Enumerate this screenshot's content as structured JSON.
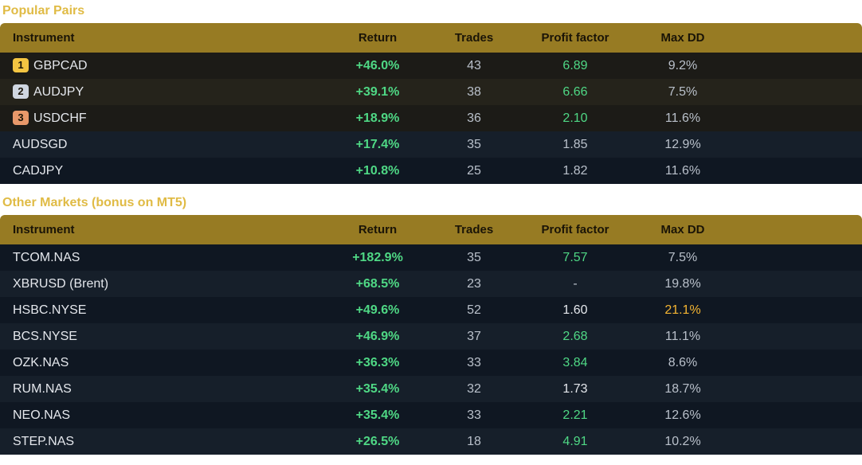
{
  "popular": {
    "title": "Popular Pairs",
    "headers": [
      "Instrument",
      "Return",
      "Trades",
      "Profit factor",
      "Max DD"
    ],
    "rows": [
      {
        "rank": "1",
        "instrument": "GBPCAD",
        "return": "+46.0%",
        "trades": "43",
        "pf": "6.89",
        "maxdd": "9.2%"
      },
      {
        "rank": "2",
        "instrument": "AUDJPY",
        "return": "+39.1%",
        "trades": "38",
        "pf": "6.66",
        "maxdd": "7.5%"
      },
      {
        "rank": "3",
        "instrument": "USDCHF",
        "return": "+18.9%",
        "trades": "36",
        "pf": "2.10",
        "maxdd": "11.6%"
      },
      {
        "instrument": "AUDSGD",
        "return": "+17.4%",
        "trades": "35",
        "pf": "1.85",
        "maxdd": "12.9%"
      },
      {
        "instrument": "CADJPY",
        "return": "+10.8%",
        "trades": "25",
        "pf": "1.82",
        "maxdd": "11.6%"
      }
    ]
  },
  "other": {
    "title": "Other Markets (bonus on MT5)",
    "headers": [
      "Instrument",
      "Return",
      "Trades",
      "Profit factor",
      "Max DD"
    ],
    "rows": [
      {
        "instrument": "TCOM.NAS",
        "return": "+182.9%",
        "trades": "35",
        "pf": "7.57",
        "maxdd": "7.5%"
      },
      {
        "instrument": "XBRUSD (Brent)",
        "return": "+68.5%",
        "trades": "23",
        "pf": "-",
        "maxdd": "19.8%"
      },
      {
        "instrument": "HSBC.NYSE",
        "return": "+49.6%",
        "trades": "52",
        "pf": "1.60",
        "maxdd": "21.1%"
      },
      {
        "instrument": "BCS.NYSE",
        "return": "+46.9%",
        "trades": "37",
        "pf": "2.68",
        "maxdd": "11.1%"
      },
      {
        "instrument": "OZK.NAS",
        "return": "+36.3%",
        "trades": "33",
        "pf": "3.84",
        "maxdd": "8.6%"
      },
      {
        "instrument": "RUM.NAS",
        "return": "+35.4%",
        "trades": "32",
        "pf": "1.73",
        "maxdd": "18.7%"
      },
      {
        "instrument": "NEO.NAS",
        "return": "+35.4%",
        "trades": "33",
        "pf": "2.21",
        "maxdd": "12.6%"
      },
      {
        "instrument": "STEP.NAS",
        "return": "+26.5%",
        "trades": "18",
        "pf": "4.91",
        "maxdd": "10.2%"
      }
    ]
  },
  "colors": {
    "accent": "#e0bb45",
    "header_bg": "#977b23",
    "positive": "#4fd885",
    "warning": "#f5b532"
  }
}
